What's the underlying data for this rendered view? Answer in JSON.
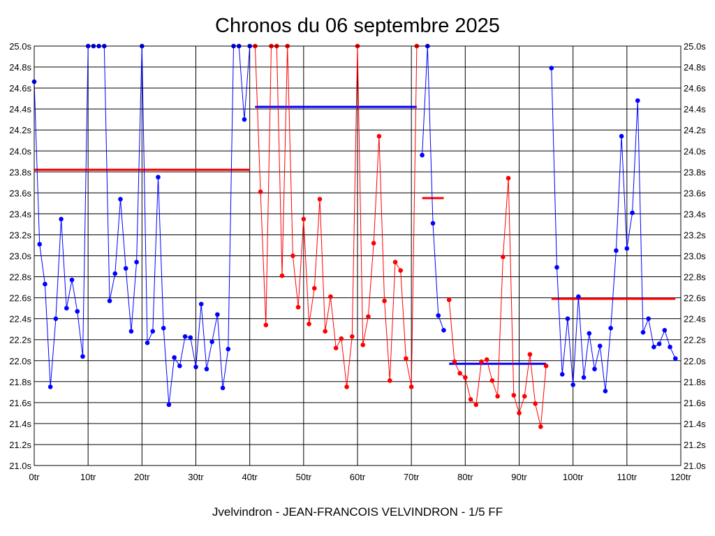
{
  "title": "Chronos du 06 septembre 2025",
  "footer": "Jvelvindron - JEAN-FRANCOIS VELVINDRON - 1/5 FF",
  "chart_data": {
    "type": "line",
    "title": "Chronos du 06 septembre 2025",
    "xlabel": "",
    "ylabel": "",
    "x_unit": "tr",
    "y_unit": "s",
    "xlim": [
      0,
      120
    ],
    "ylim": [
      21.0,
      25.0
    ],
    "x_ticks": [
      0,
      10,
      20,
      30,
      40,
      50,
      60,
      70,
      80,
      90,
      100,
      110,
      120
    ],
    "y_ticks": [
      21.0,
      21.2,
      21.4,
      21.6,
      21.8,
      22.0,
      22.2,
      22.4,
      22.6,
      22.8,
      23.0,
      23.2,
      23.4,
      23.6,
      23.8,
      24.0,
      24.2,
      24.4,
      24.6,
      24.8,
      25.0
    ],
    "x_tick_labels": [
      "0tr",
      "10tr",
      "20tr",
      "30tr",
      "40tr",
      "50tr",
      "60tr",
      "70tr",
      "80tr",
      "90tr",
      "100tr",
      "110tr",
      "120tr"
    ],
    "y_tick_labels": [
      "21.0s",
      "21.2s",
      "21.4s",
      "21.6s",
      "21.8s",
      "22.0s",
      "22.2s",
      "22.4s",
      "22.6s",
      "22.8s",
      "23.0s",
      "23.2s",
      "23.4s",
      "23.6s",
      "23.8s",
      "24.0s",
      "24.2s",
      "24.4s",
      "24.6s",
      "24.8s",
      "25.0s"
    ],
    "grid": true,
    "colors": {
      "blue": "#0000ff",
      "red": "#ff0000",
      "background": "#ffffff",
      "grid": "#000000"
    },
    "series": [
      {
        "color": "#0000ff",
        "x": [
          0,
          1,
          2,
          3,
          4,
          5,
          6,
          7,
          8,
          9,
          10,
          11,
          12,
          13,
          14,
          15,
          16,
          17,
          18,
          19,
          20,
          21,
          22,
          23,
          24,
          25,
          26,
          27,
          28,
          29,
          30,
          31,
          32,
          33,
          34,
          35,
          36,
          37,
          38,
          39,
          40
        ],
        "y": [
          24.66,
          23.11,
          22.73,
          21.75,
          22.4,
          23.35,
          22.5,
          22.77,
          22.47,
          22.04,
          25.0,
          25.0,
          25.0,
          25.0,
          22.57,
          22.83,
          23.54,
          22.88,
          22.28,
          22.94,
          25.0,
          22.17,
          22.28,
          23.75,
          22.31,
          21.58,
          22.03,
          21.95,
          22.23,
          22.22,
          21.94,
          22.54,
          21.92,
          22.18,
          22.44,
          21.74,
          22.11,
          25.0,
          25.0,
          24.3,
          25.0
        ]
      },
      {
        "color": "#ff0000",
        "x": [
          41,
          42,
          43,
          44,
          45,
          46,
          47,
          48,
          49,
          50,
          51,
          52,
          53,
          54,
          55,
          56,
          57,
          58,
          59,
          60,
          61,
          62,
          63,
          64,
          65,
          66,
          67,
          68,
          69,
          70,
          71
        ],
        "y": [
          25.0,
          23.61,
          22.34,
          25.0,
          25.0,
          22.81,
          25.0,
          23.0,
          22.51,
          23.35,
          22.35,
          22.69,
          23.54,
          22.28,
          22.61,
          22.12,
          22.21,
          21.75,
          22.23,
          25.0,
          22.15,
          22.42,
          23.12,
          24.14,
          22.57,
          21.81,
          22.94,
          22.86,
          22.02,
          21.75,
          25.0
        ]
      },
      {
        "color": "#0000ff",
        "x": [
          72,
          73,
          74,
          75,
          76
        ],
        "y": [
          23.96,
          25.0,
          23.31,
          22.43,
          22.29
        ]
      },
      {
        "color": "#ff0000",
        "x": [
          77,
          78,
          79,
          80,
          81,
          82,
          83,
          84,
          85,
          86,
          87,
          88,
          89,
          90,
          91,
          92,
          93,
          94,
          95
        ],
        "y": [
          22.58,
          21.99,
          21.88,
          21.84,
          21.63,
          21.58,
          21.99,
          22.01,
          21.81,
          21.66,
          22.99,
          23.74,
          21.67,
          21.5,
          21.66,
          22.06,
          21.59,
          21.37,
          21.95
        ]
      },
      {
        "color": "#0000ff",
        "x": [
          96,
          97,
          98,
          99,
          100,
          101,
          102,
          103,
          104,
          105,
          106,
          107,
          108,
          109,
          110,
          111,
          112,
          113,
          114,
          115,
          116,
          117,
          118,
          119
        ],
        "y": [
          24.79,
          22.89,
          21.87,
          22.4,
          21.77,
          22.61,
          21.84,
          22.26,
          21.92,
          22.14,
          21.71,
          22.31,
          23.05,
          24.14,
          23.07,
          23.41,
          24.48,
          22.27,
          22.4,
          22.13,
          22.16,
          22.29,
          22.13,
          22.02
        ]
      }
    ],
    "averages": [
      {
        "color": "#ff0000",
        "x_start": 0,
        "x_end": 40,
        "y": 23.82
      },
      {
        "color": "#0000ff",
        "x_start": 41,
        "x_end": 71,
        "y": 24.42
      },
      {
        "color": "#ff0000",
        "x_start": 72,
        "x_end": 76,
        "y": 23.55
      },
      {
        "color": "#0000ff",
        "x_start": 77,
        "x_end": 95,
        "y": 21.97
      },
      {
        "color": "#ff0000",
        "x_start": 96,
        "x_end": 119,
        "y": 22.59
      }
    ]
  }
}
